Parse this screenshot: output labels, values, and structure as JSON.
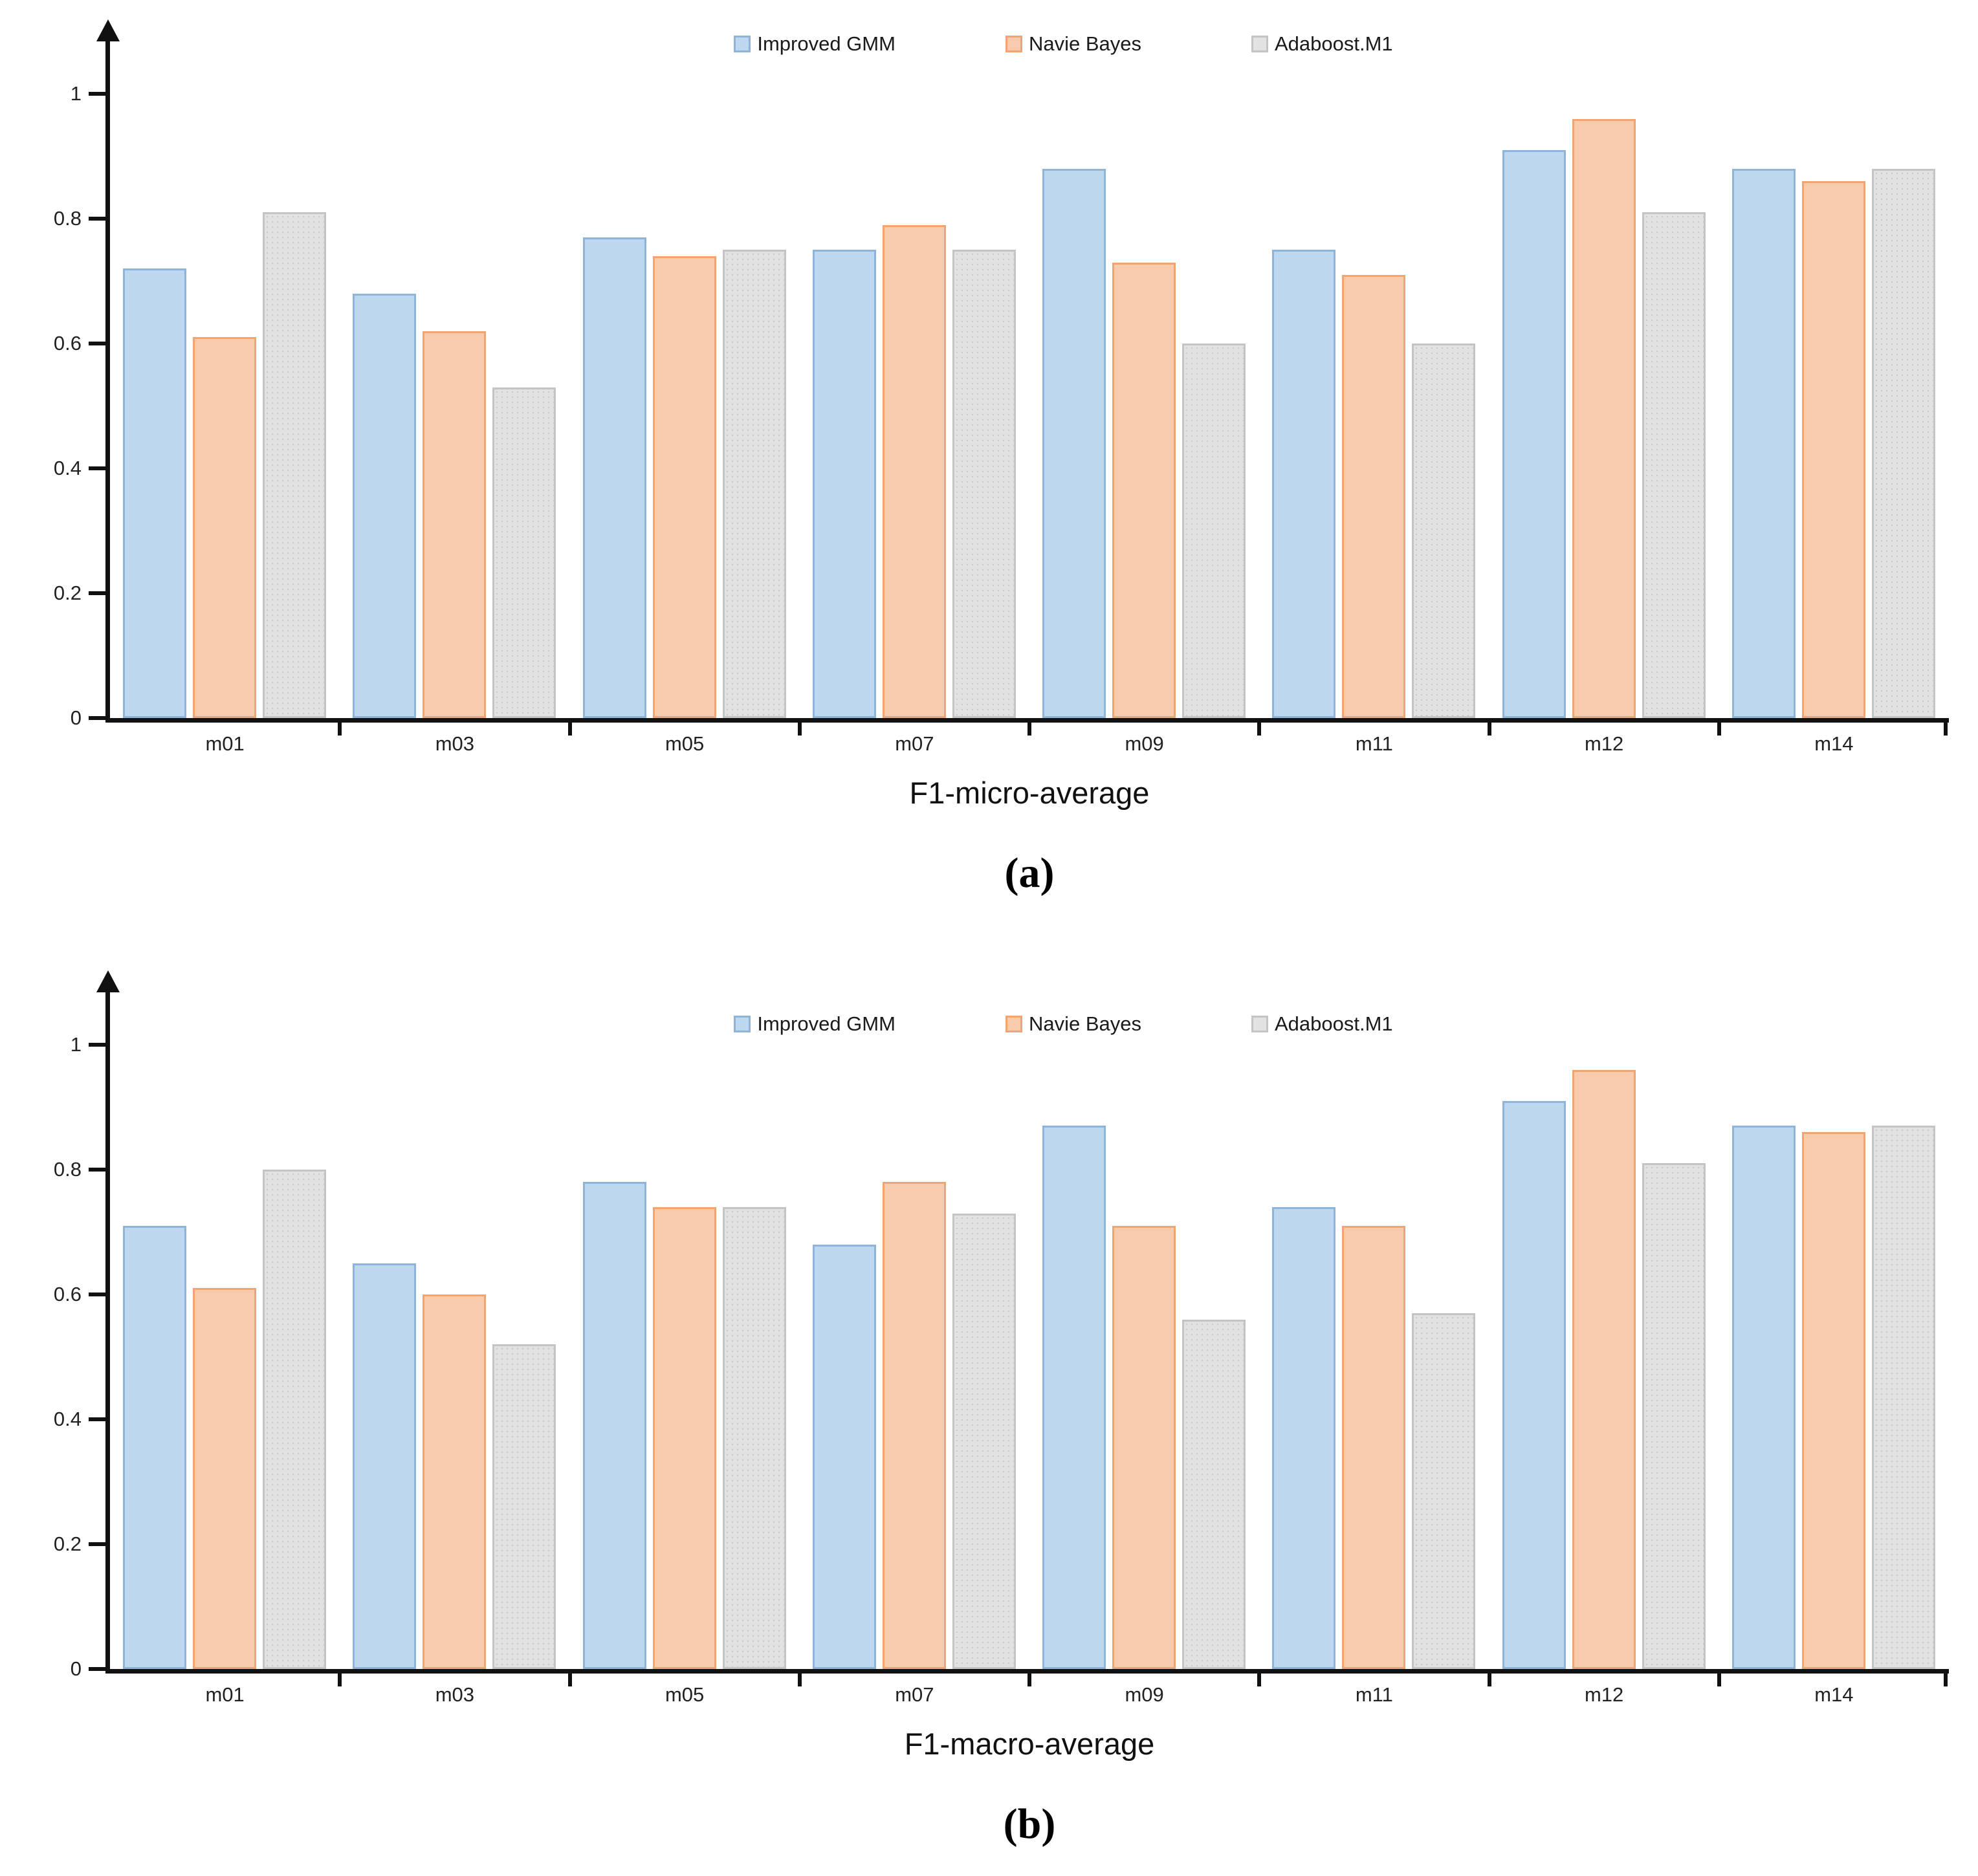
{
  "figure": {
    "background": "#ffffff",
    "axis_color": "#111111",
    "text_color": "#222222"
  },
  "chart_data": [
    {
      "type": "bar",
      "panel": "(a)",
      "xlabel": "F1-micro-average",
      "categories": [
        "m01",
        "m03",
        "m05",
        "m07",
        "m09",
        "m11",
        "m12",
        "m14"
      ],
      "series": [
        {
          "name": "Improved GMM",
          "fill": "#BDD7EE",
          "border": "#8FB4D9",
          "pattern": "solid",
          "values": [
            0.72,
            0.68,
            0.77,
            0.75,
            0.88,
            0.75,
            0.91,
            0.88
          ]
        },
        {
          "name": "Navie Bayes",
          "fill": "#F8CBAD",
          "border": "#F0A472",
          "pattern": "solid",
          "values": [
            0.61,
            0.62,
            0.74,
            0.79,
            0.73,
            0.71,
            0.96,
            0.86
          ]
        },
        {
          "name": "Adaboost.M1",
          "fill": "#E2E2E2",
          "border": "#C4C4C4",
          "pattern": "dots",
          "values": [
            0.81,
            0.53,
            0.75,
            0.75,
            0.6,
            0.6,
            0.81,
            0.88
          ]
        }
      ],
      "y_tick_values": [
        0,
        0.2,
        0.4,
        0.6,
        0.8,
        1
      ],
      "y_tick_labels": [
        "0",
        "0.2",
        "0.4",
        "0.6",
        "0.8",
        "1"
      ],
      "ylim": [
        0,
        1.08
      ],
      "grid": false,
      "legend_position": "top-center"
    },
    {
      "type": "bar",
      "panel": "(b)",
      "xlabel": "F1-macro-average",
      "categories": [
        "m01",
        "m03",
        "m05",
        "m07",
        "m09",
        "m11",
        "m12",
        "m14"
      ],
      "series": [
        {
          "name": "Improved GMM",
          "fill": "#BDD7EE",
          "border": "#8FB4D9",
          "pattern": "solid",
          "values": [
            0.71,
            0.65,
            0.78,
            0.68,
            0.87,
            0.74,
            0.91,
            0.87
          ]
        },
        {
          "name": "Navie Bayes",
          "fill": "#F8CBAD",
          "border": "#F0A472",
          "pattern": "solid",
          "values": [
            0.61,
            0.6,
            0.74,
            0.78,
            0.71,
            0.71,
            0.96,
            0.86
          ]
        },
        {
          "name": "Adaboost.M1",
          "fill": "#E2E2E2",
          "border": "#C4C4C4",
          "pattern": "dots",
          "values": [
            0.8,
            0.52,
            0.74,
            0.73,
            0.56,
            0.57,
            0.81,
            0.87
          ]
        }
      ],
      "y_tick_values": [
        0,
        0.2,
        0.4,
        0.6,
        0.8,
        1
      ],
      "y_tick_labels": [
        "0",
        "0.2",
        "0.4",
        "0.6",
        "0.8",
        "1"
      ],
      "ylim": [
        0,
        1.08
      ],
      "grid": false,
      "legend_position": "top-center"
    }
  ]
}
